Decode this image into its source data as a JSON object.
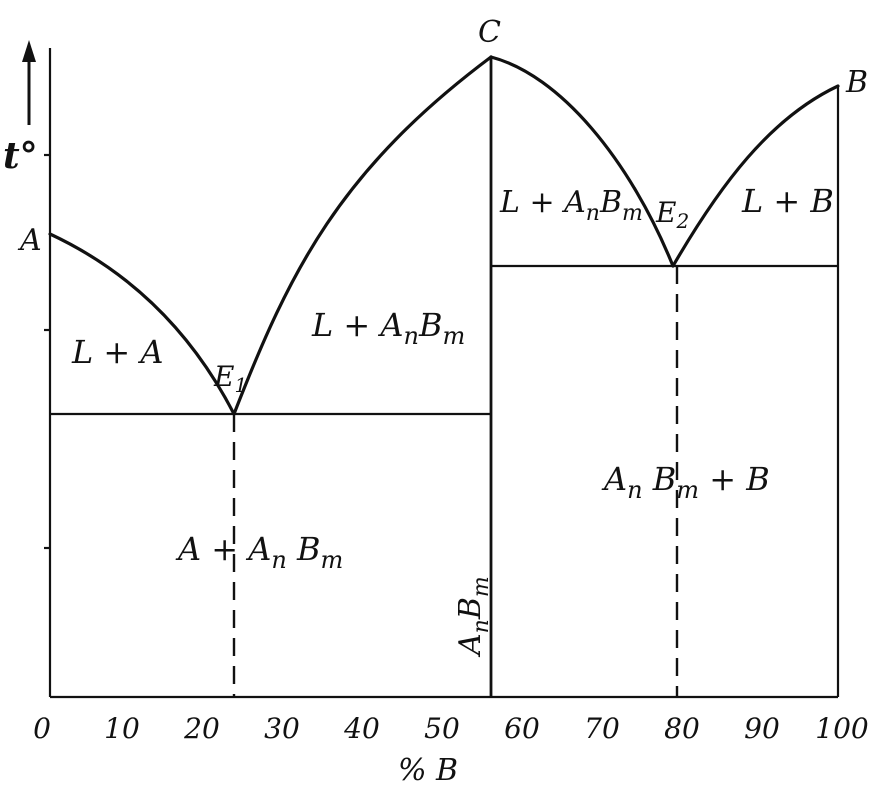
{
  "axis": {
    "y_label": "t°",
    "x_label": "% B",
    "x_ticks": [
      "0",
      "10",
      "20",
      "30",
      "40",
      "50",
      "60",
      "70",
      "80",
      "90",
      "100"
    ]
  },
  "points": {
    "A": "A",
    "B": "B",
    "C": "C",
    "E1": "E",
    "E1_sub": "1",
    "E2": "E",
    "E2_sub": "2"
  },
  "regions": {
    "liquid_A": {
      "main": "L + A"
    },
    "liquid_AnBm_left": {
      "l": "L + A",
      "s1": "n",
      "m": "B",
      "s2": "m"
    },
    "liquid_AnBm_right": {
      "l": "L + A",
      "s1": "n",
      "m": "B",
      "s2": "m"
    },
    "liquid_B": {
      "main": "L + B"
    },
    "solid_left": {
      "l": "A + A",
      "s1": "n",
      "m": " B",
      "s2": "m"
    },
    "solid_right": {
      "l": "A",
      "s1": "n",
      "m": " B",
      "s2": "m",
      "r": " + B"
    },
    "compound": {
      "l": "A",
      "s1": "n",
      "m": "B",
      "s2": "m"
    }
  }
}
